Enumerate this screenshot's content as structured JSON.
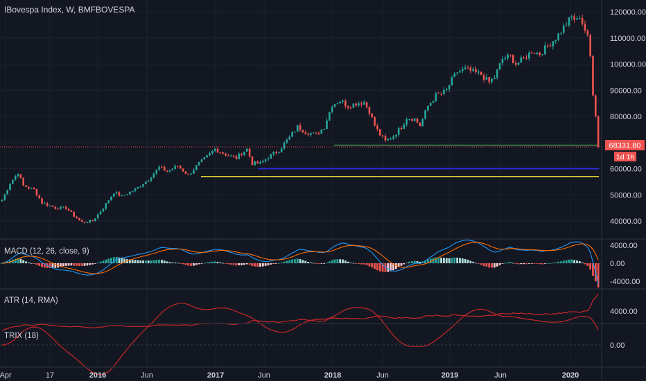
{
  "header": {
    "title": "IBovespa Index, W, BMFBOVESPA"
  },
  "price_axis": {
    "ticks": [
      "120000.00",
      "110000.00",
      "100000.00",
      "90000.00",
      "80000.00",
      "70000.00",
      "60000.00",
      "50000.00",
      "40000.00"
    ],
    "last_price_label": "68331.80",
    "countdown_label": "1d 1h"
  },
  "macd_panel": {
    "title": "MACD (12, 26, close, 9)",
    "ticks": [
      "4000.00",
      "0.00",
      "-4000.00"
    ]
  },
  "atr_panel": {
    "title": "ATR (14, RMA)",
    "ticks": [
      "4000.00"
    ]
  },
  "trix_panel": {
    "title": "TRIX (18)",
    "ticks": [
      "0.00"
    ]
  },
  "time_axis": {
    "labels": [
      {
        "text": "Apr",
        "bold": false
      },
      {
        "text": "17",
        "bold": false
      },
      {
        "text": "2016",
        "bold": true
      },
      {
        "text": "Jun",
        "bold": false
      },
      {
        "text": "2017",
        "bold": true
      },
      {
        "text": "Jun",
        "bold": false
      },
      {
        "text": "2018",
        "bold": true
      },
      {
        "text": "Jun",
        "bold": false
      },
      {
        "text": "2019",
        "bold": true
      },
      {
        "text": "Jun",
        "bold": false
      },
      {
        "text": "2020",
        "bold": true
      }
    ]
  },
  "colors": {
    "background": "#131722",
    "up": "#26a69a",
    "down": "#ef5350",
    "text": "#d1d4dc",
    "macd_line": "#2196f3",
    "signal_line": "#ff6d00",
    "atr_line": "#c62828",
    "trix_line": "#c62828",
    "level_green": "#4caf50",
    "level_blue": "#2b2bd6",
    "level_yellow": "#ffeb3b",
    "last_price": "#ef5350"
  },
  "chart_data": {
    "type": "candlestick",
    "ylim": [
      34000,
      122000
    ],
    "levels": [
      {
        "color": "green",
        "value": 69000
      },
      {
        "color": "blue",
        "value": 60000
      },
      {
        "color": "yellow",
        "value": 57000
      }
    ],
    "last_price": 68331.8,
    "price_anchors": [
      [
        0,
        48000
      ],
      [
        3,
        54500
      ],
      [
        6,
        58500
      ],
      [
        8,
        53500
      ],
      [
        12,
        52000
      ],
      [
        15,
        47000
      ],
      [
        20,
        45000
      ],
      [
        24,
        45000
      ],
      [
        27,
        42000
      ],
      [
        30,
        39500
      ],
      [
        34,
        40000
      ],
      [
        38,
        45000
      ],
      [
        42,
        51000
      ],
      [
        45,
        49500
      ],
      [
        50,
        52000
      ],
      [
        55,
        56000
      ],
      [
        59,
        60500
      ],
      [
        62,
        59000
      ],
      [
        66,
        61000
      ],
      [
        70,
        57500
      ],
      [
        74,
        62000
      ],
      [
        77,
        64500
      ],
      [
        80,
        67500
      ],
      [
        84,
        65500
      ],
      [
        88,
        64000
      ],
      [
        90,
        66000
      ],
      [
        92,
        67500
      ],
      [
        94,
        62000
      ],
      [
        97,
        62000
      ],
      [
        100,
        64500
      ],
      [
        104,
        67000
      ],
      [
        108,
        72000
      ],
      [
        111,
        76000
      ],
      [
        114,
        74000
      ],
      [
        118,
        73000
      ],
      [
        121,
        76000
      ],
      [
        124,
        84500
      ],
      [
        127,
        86000
      ],
      [
        130,
        84000
      ],
      [
        133,
        85000
      ],
      [
        136,
        85500
      ],
      [
        138,
        82000
      ],
      [
        140,
        76500
      ],
      [
        142,
        73000
      ],
      [
        144,
        70500
      ],
      [
        147,
        72500
      ],
      [
        150,
        76000
      ],
      [
        152,
        79500
      ],
      [
        155,
        79000
      ],
      [
        157,
        76500
      ],
      [
        160,
        84000
      ],
      [
        163,
        88000
      ],
      [
        165,
        88500
      ],
      [
        167,
        90000
      ],
      [
        169,
        94000
      ],
      [
        171,
        97000
      ],
      [
        174,
        98000
      ],
      [
        177,
        97000
      ],
      [
        180,
        96000
      ],
      [
        183,
        93000
      ],
      [
        185,
        95000
      ],
      [
        188,
        102000
      ],
      [
        191,
        103000
      ],
      [
        193,
        100000
      ],
      [
        196,
        102000
      ],
      [
        199,
        105000
      ],
      [
        202,
        104000
      ],
      [
        205,
        107000
      ],
      [
        208,
        110000
      ],
      [
        211,
        114000
      ],
      [
        214,
        118000
      ],
      [
        216,
        116500
      ],
      [
        217,
        118500
      ],
      [
        219,
        113000
      ],
      [
        220,
        110000
      ],
      [
        221,
        103000
      ],
      [
        222,
        88000
      ],
      [
        223,
        80000
      ],
      [
        224,
        68331.8
      ]
    ],
    "macd_ylim": [
      -5500,
      5000
    ],
    "atr_ylim": [
      1500,
      7500
    ],
    "trix_ylim": [
      -0.45,
      0.25
    ]
  }
}
